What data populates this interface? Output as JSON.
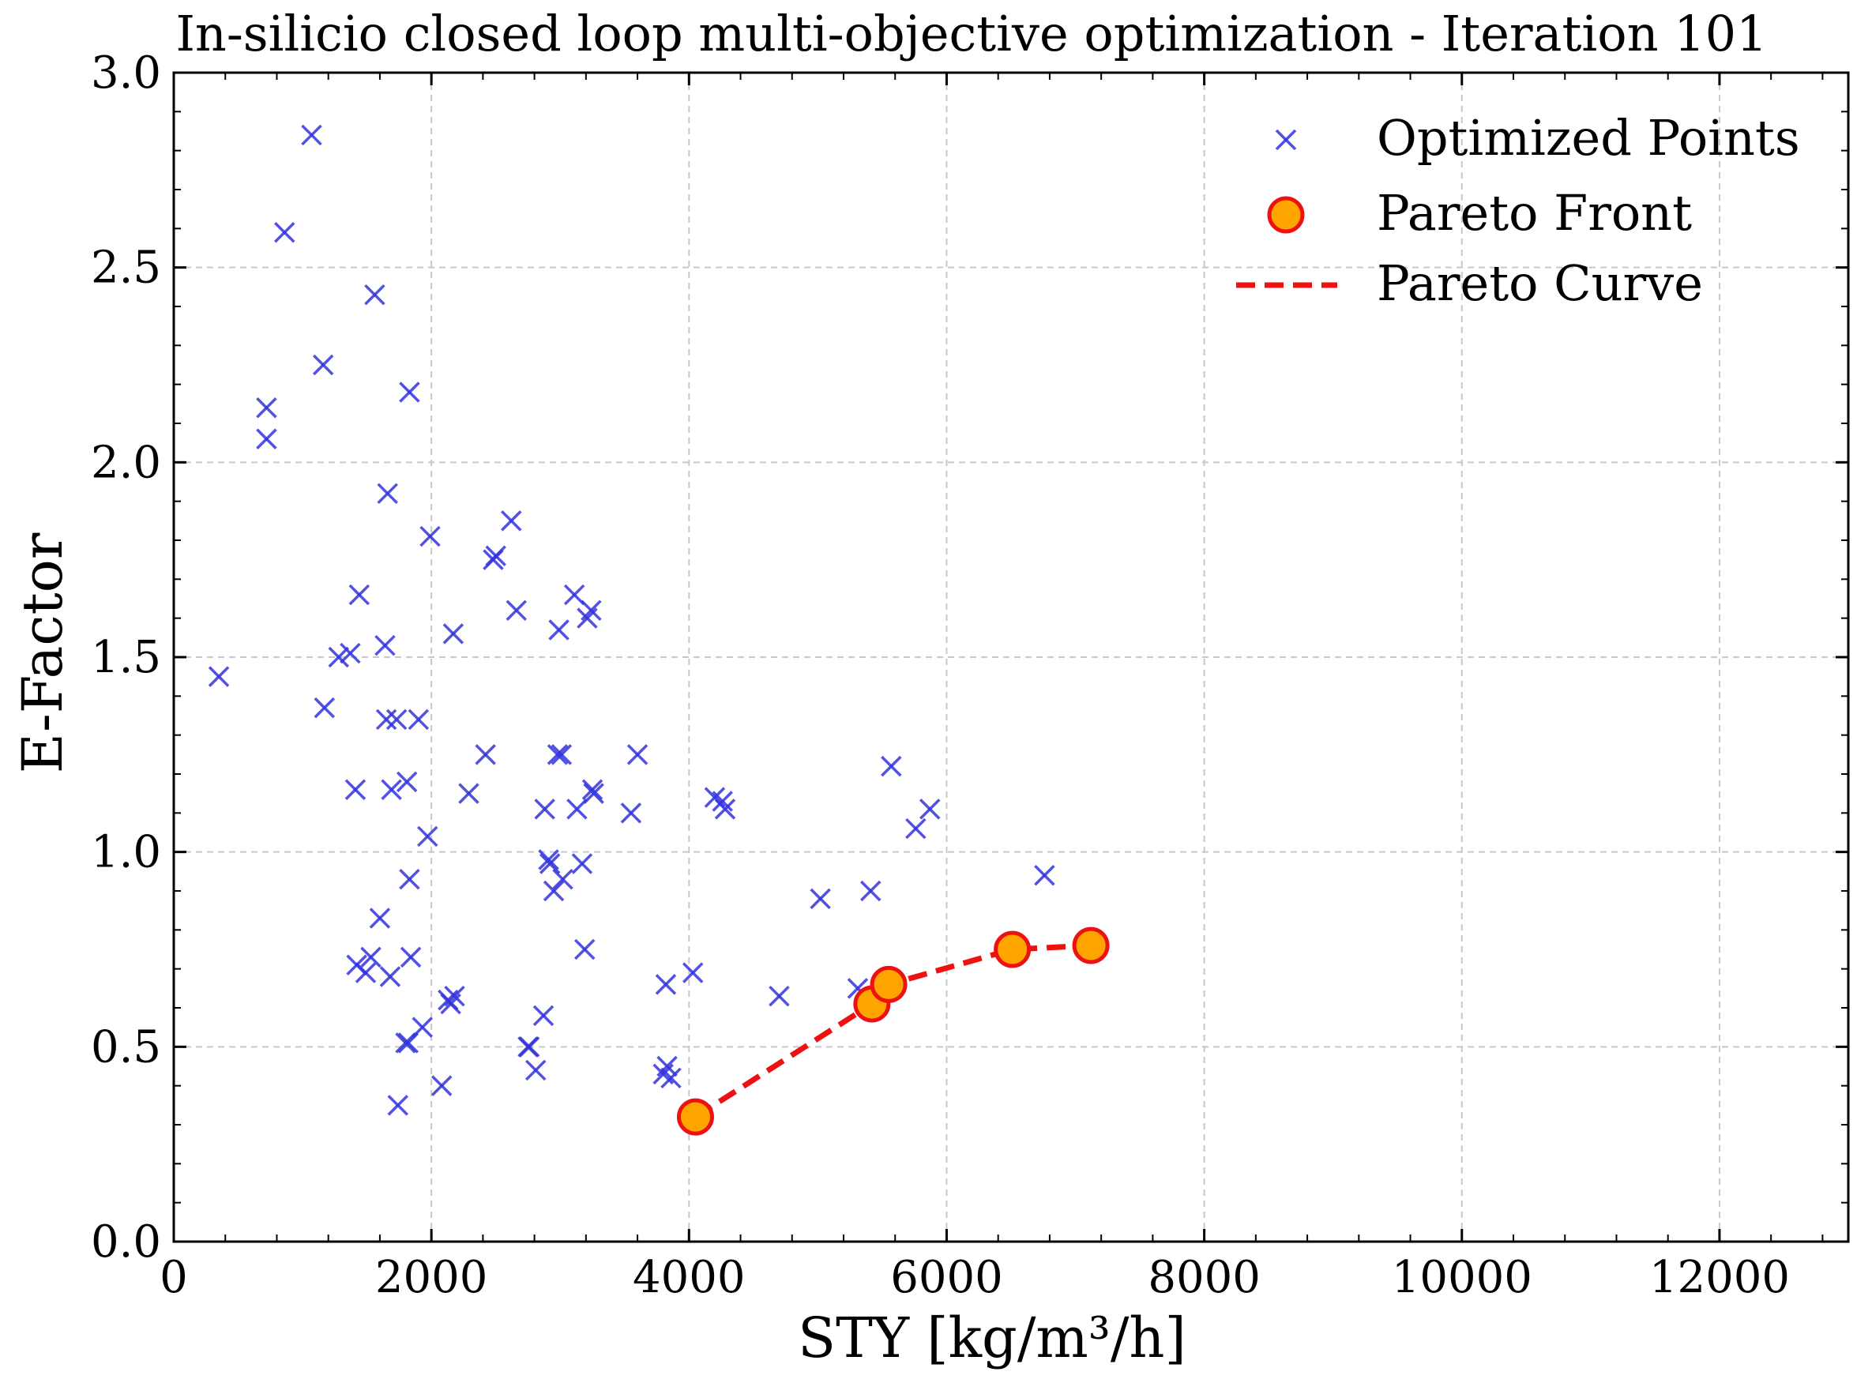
{
  "chart_data": {
    "type": "scatter",
    "title": "In-silicio closed loop multi-objective optimization - Iteration 101",
    "xlabel": "STY [kg/m³/h]",
    "ylabel": "E-Factor",
    "xlim": [
      0,
      13000
    ],
    "ylim": [
      0,
      3.0
    ],
    "x_ticks": [
      0,
      2000,
      4000,
      6000,
      8000,
      10000,
      12000
    ],
    "y_ticks": [
      0.0,
      0.5,
      1.0,
      1.5,
      2.0,
      2.5,
      3.0
    ],
    "x_tick_labels": [
      "0",
      "2000",
      "4000",
      "6000",
      "8000",
      "10000",
      "12000"
    ],
    "y_tick_labels": [
      "0.0",
      "0.5",
      "1.0",
      "1.5",
      "2.0",
      "2.5",
      "3.0"
    ],
    "grid": true,
    "legend_position": "top-right",
    "series": [
      {
        "name": "Optimized Points",
        "marker": "x",
        "color": "#3333dd",
        "points": [
          [
            1070,
            2.84
          ],
          [
            860,
            2.59
          ],
          [
            1560,
            2.43
          ],
          [
            1160,
            2.25
          ],
          [
            720,
            2.14
          ],
          [
            1830,
            2.18
          ],
          [
            720,
            2.06
          ],
          [
            1660,
            1.92
          ],
          [
            1990,
            1.81
          ],
          [
            2620,
            1.85
          ],
          [
            2480,
            1.75
          ],
          [
            2500,
            1.76
          ],
          [
            1440,
            1.66
          ],
          [
            2660,
            1.62
          ],
          [
            3110,
            1.66
          ],
          [
            3240,
            1.62
          ],
          [
            3210,
            1.6
          ],
          [
            2990,
            1.57
          ],
          [
            2170,
            1.56
          ],
          [
            1640,
            1.53
          ],
          [
            1280,
            1.5
          ],
          [
            1370,
            1.51
          ],
          [
            350,
            1.45
          ],
          [
            1170,
            1.37
          ],
          [
            1650,
            1.34
          ],
          [
            1730,
            1.34
          ],
          [
            1900,
            1.34
          ],
          [
            2420,
            1.25
          ],
          [
            2980,
            1.25
          ],
          [
            3010,
            1.25
          ],
          [
            3600,
            1.25
          ],
          [
            5570,
            1.22
          ],
          [
            1410,
            1.16
          ],
          [
            1690,
            1.16
          ],
          [
            1810,
            1.18
          ],
          [
            2290,
            1.15
          ],
          [
            3250,
            1.16
          ],
          [
            3260,
            1.15
          ],
          [
            4200,
            1.14
          ],
          [
            4260,
            1.13
          ],
          [
            4280,
            1.11
          ],
          [
            2880,
            1.11
          ],
          [
            3130,
            1.11
          ],
          [
            3550,
            1.1
          ],
          [
            5870,
            1.11
          ],
          [
            5760,
            1.06
          ],
          [
            1970,
            1.04
          ],
          [
            2910,
            0.98
          ],
          [
            2920,
            0.97
          ],
          [
            3170,
            0.97
          ],
          [
            1830,
            0.93
          ],
          [
            3020,
            0.93
          ],
          [
            2950,
            0.9
          ],
          [
            5020,
            0.88
          ],
          [
            5410,
            0.9
          ],
          [
            6760,
            0.94
          ],
          [
            1600,
            0.83
          ],
          [
            3190,
            0.75
          ],
          [
            1840,
            0.73
          ],
          [
            1420,
            0.71
          ],
          [
            1530,
            0.73
          ],
          [
            1490,
            0.69
          ],
          [
            1680,
            0.68
          ],
          [
            3820,
            0.66
          ],
          [
            4030,
            0.69
          ],
          [
            4700,
            0.63
          ],
          [
            5310,
            0.65
          ],
          [
            2130,
            0.62
          ],
          [
            2180,
            0.63
          ],
          [
            2150,
            0.61
          ],
          [
            1930,
            0.55
          ],
          [
            2870,
            0.58
          ],
          [
            1800,
            0.51
          ],
          [
            1820,
            0.51
          ],
          [
            2750,
            0.5
          ],
          [
            2760,
            0.5
          ],
          [
            2810,
            0.44
          ],
          [
            3830,
            0.45
          ],
          [
            3800,
            0.43
          ],
          [
            3860,
            0.42
          ],
          [
            2080,
            0.4
          ],
          [
            1740,
            0.35
          ]
        ]
      },
      {
        "name": "Pareto Front",
        "marker": "circle",
        "color": "#ffa500",
        "edge_color": "#ee1111",
        "points": [
          [
            4050,
            0.32
          ],
          [
            5420,
            0.61
          ],
          [
            5550,
            0.66
          ],
          [
            6510,
            0.75
          ],
          [
            7120,
            0.76
          ]
        ]
      },
      {
        "name": "Pareto Curve",
        "style": "dashed-line",
        "color": "#ee1111",
        "points": [
          [
            4050,
            0.32
          ],
          [
            5420,
            0.61
          ],
          [
            5550,
            0.66
          ],
          [
            6510,
            0.75
          ],
          [
            7120,
            0.76
          ]
        ]
      }
    ]
  }
}
